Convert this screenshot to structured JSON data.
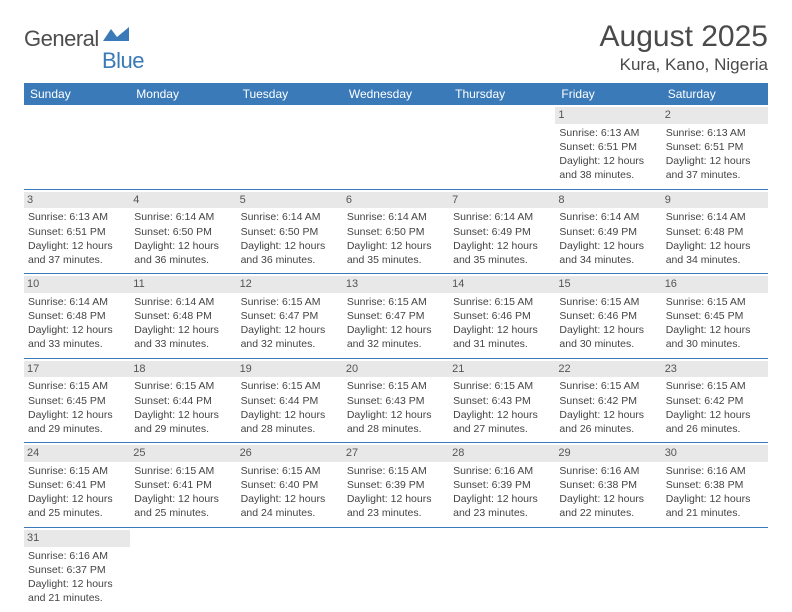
{
  "logo": {
    "general": "General",
    "blue": "Blue"
  },
  "title": "August 2025",
  "location": "Kura, Kano, Nigeria",
  "colors": {
    "accent": "#3a7ab8",
    "dayBg": "#e8e8e8",
    "text": "#444"
  },
  "dayHeaders": [
    "Sunday",
    "Monday",
    "Tuesday",
    "Wednesday",
    "Thursday",
    "Friday",
    "Saturday"
  ],
  "weeks": [
    [
      null,
      null,
      null,
      null,
      null,
      {
        "n": "1",
        "sr": "Sunrise: 6:13 AM",
        "ss": "Sunset: 6:51 PM",
        "d1": "Daylight: 12 hours",
        "d2": "and 38 minutes."
      },
      {
        "n": "2",
        "sr": "Sunrise: 6:13 AM",
        "ss": "Sunset: 6:51 PM",
        "d1": "Daylight: 12 hours",
        "d2": "and 37 minutes."
      }
    ],
    [
      {
        "n": "3",
        "sr": "Sunrise: 6:13 AM",
        "ss": "Sunset: 6:51 PM",
        "d1": "Daylight: 12 hours",
        "d2": "and 37 minutes."
      },
      {
        "n": "4",
        "sr": "Sunrise: 6:14 AM",
        "ss": "Sunset: 6:50 PM",
        "d1": "Daylight: 12 hours",
        "d2": "and 36 minutes."
      },
      {
        "n": "5",
        "sr": "Sunrise: 6:14 AM",
        "ss": "Sunset: 6:50 PM",
        "d1": "Daylight: 12 hours",
        "d2": "and 36 minutes."
      },
      {
        "n": "6",
        "sr": "Sunrise: 6:14 AM",
        "ss": "Sunset: 6:50 PM",
        "d1": "Daylight: 12 hours",
        "d2": "and 35 minutes."
      },
      {
        "n": "7",
        "sr": "Sunrise: 6:14 AM",
        "ss": "Sunset: 6:49 PM",
        "d1": "Daylight: 12 hours",
        "d2": "and 35 minutes."
      },
      {
        "n": "8",
        "sr": "Sunrise: 6:14 AM",
        "ss": "Sunset: 6:49 PM",
        "d1": "Daylight: 12 hours",
        "d2": "and 34 minutes."
      },
      {
        "n": "9",
        "sr": "Sunrise: 6:14 AM",
        "ss": "Sunset: 6:48 PM",
        "d1": "Daylight: 12 hours",
        "d2": "and 34 minutes."
      }
    ],
    [
      {
        "n": "10",
        "sr": "Sunrise: 6:14 AM",
        "ss": "Sunset: 6:48 PM",
        "d1": "Daylight: 12 hours",
        "d2": "and 33 minutes."
      },
      {
        "n": "11",
        "sr": "Sunrise: 6:14 AM",
        "ss": "Sunset: 6:48 PM",
        "d1": "Daylight: 12 hours",
        "d2": "and 33 minutes."
      },
      {
        "n": "12",
        "sr": "Sunrise: 6:15 AM",
        "ss": "Sunset: 6:47 PM",
        "d1": "Daylight: 12 hours",
        "d2": "and 32 minutes."
      },
      {
        "n": "13",
        "sr": "Sunrise: 6:15 AM",
        "ss": "Sunset: 6:47 PM",
        "d1": "Daylight: 12 hours",
        "d2": "and 32 minutes."
      },
      {
        "n": "14",
        "sr": "Sunrise: 6:15 AM",
        "ss": "Sunset: 6:46 PM",
        "d1": "Daylight: 12 hours",
        "d2": "and 31 minutes."
      },
      {
        "n": "15",
        "sr": "Sunrise: 6:15 AM",
        "ss": "Sunset: 6:46 PM",
        "d1": "Daylight: 12 hours",
        "d2": "and 30 minutes."
      },
      {
        "n": "16",
        "sr": "Sunrise: 6:15 AM",
        "ss": "Sunset: 6:45 PM",
        "d1": "Daylight: 12 hours",
        "d2": "and 30 minutes."
      }
    ],
    [
      {
        "n": "17",
        "sr": "Sunrise: 6:15 AM",
        "ss": "Sunset: 6:45 PM",
        "d1": "Daylight: 12 hours",
        "d2": "and 29 minutes."
      },
      {
        "n": "18",
        "sr": "Sunrise: 6:15 AM",
        "ss": "Sunset: 6:44 PM",
        "d1": "Daylight: 12 hours",
        "d2": "and 29 minutes."
      },
      {
        "n": "19",
        "sr": "Sunrise: 6:15 AM",
        "ss": "Sunset: 6:44 PM",
        "d1": "Daylight: 12 hours",
        "d2": "and 28 minutes."
      },
      {
        "n": "20",
        "sr": "Sunrise: 6:15 AM",
        "ss": "Sunset: 6:43 PM",
        "d1": "Daylight: 12 hours",
        "d2": "and 28 minutes."
      },
      {
        "n": "21",
        "sr": "Sunrise: 6:15 AM",
        "ss": "Sunset: 6:43 PM",
        "d1": "Daylight: 12 hours",
        "d2": "and 27 minutes."
      },
      {
        "n": "22",
        "sr": "Sunrise: 6:15 AM",
        "ss": "Sunset: 6:42 PM",
        "d1": "Daylight: 12 hours",
        "d2": "and 26 minutes."
      },
      {
        "n": "23",
        "sr": "Sunrise: 6:15 AM",
        "ss": "Sunset: 6:42 PM",
        "d1": "Daylight: 12 hours",
        "d2": "and 26 minutes."
      }
    ],
    [
      {
        "n": "24",
        "sr": "Sunrise: 6:15 AM",
        "ss": "Sunset: 6:41 PM",
        "d1": "Daylight: 12 hours",
        "d2": "and 25 minutes."
      },
      {
        "n": "25",
        "sr": "Sunrise: 6:15 AM",
        "ss": "Sunset: 6:41 PM",
        "d1": "Daylight: 12 hours",
        "d2": "and 25 minutes."
      },
      {
        "n": "26",
        "sr": "Sunrise: 6:15 AM",
        "ss": "Sunset: 6:40 PM",
        "d1": "Daylight: 12 hours",
        "d2": "and 24 minutes."
      },
      {
        "n": "27",
        "sr": "Sunrise: 6:15 AM",
        "ss": "Sunset: 6:39 PM",
        "d1": "Daylight: 12 hours",
        "d2": "and 23 minutes."
      },
      {
        "n": "28",
        "sr": "Sunrise: 6:16 AM",
        "ss": "Sunset: 6:39 PM",
        "d1": "Daylight: 12 hours",
        "d2": "and 23 minutes."
      },
      {
        "n": "29",
        "sr": "Sunrise: 6:16 AM",
        "ss": "Sunset: 6:38 PM",
        "d1": "Daylight: 12 hours",
        "d2": "and 22 minutes."
      },
      {
        "n": "30",
        "sr": "Sunrise: 6:16 AM",
        "ss": "Sunset: 6:38 PM",
        "d1": "Daylight: 12 hours",
        "d2": "and 21 minutes."
      }
    ],
    [
      {
        "n": "31",
        "sr": "Sunrise: 6:16 AM",
        "ss": "Sunset: 6:37 PM",
        "d1": "Daylight: 12 hours",
        "d2": "and 21 minutes."
      },
      null,
      null,
      null,
      null,
      null,
      null
    ]
  ]
}
